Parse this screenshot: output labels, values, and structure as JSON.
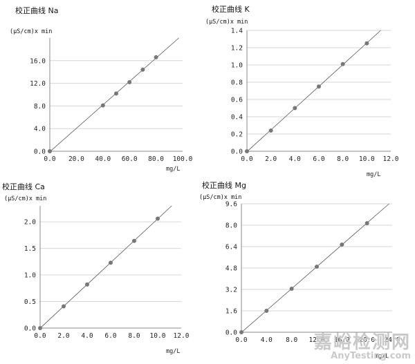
{
  "chart_data": [
    {
      "type": "scatter",
      "title": "校正曲线 Na",
      "ylabel": "(μS/cm)x min",
      "xlabel": "mg/L",
      "x": [
        0,
        40,
        50,
        60,
        70,
        80
      ],
      "y": [
        0,
        8.1,
        10.2,
        12.2,
        14.4,
        16.6
      ],
      "xlim": [
        0,
        100
      ],
      "ylim": [
        0,
        20
      ],
      "xticks": [
        "0.0",
        "20.0",
        "40.0",
        "60.0",
        "80.0",
        "100.0"
      ],
      "yticks": [
        "0.0",
        "4.0",
        "8.0",
        "12.0",
        "16.0"
      ],
      "fit_line": true
    },
    {
      "type": "scatter",
      "title": "校正曲线 K",
      "ylabel": "(μS/cm)x min",
      "xlabel": "mg/L",
      "x": [
        0,
        2,
        4,
        6,
        8,
        10
      ],
      "y": [
        0,
        0.24,
        0.5,
        0.75,
        1.01,
        1.25
      ],
      "xlim": [
        0,
        12
      ],
      "ylim": [
        0,
        1.4
      ],
      "xticks": [
        "0.0",
        "2.0",
        "4.0",
        "6.0",
        "8.0",
        "10.0",
        "12.0"
      ],
      "yticks": [
        "0.0",
        "0.2",
        "0.4",
        "0.6",
        "0.8",
        "1.0",
        "1.2",
        "1.4"
      ],
      "fit_line": true
    },
    {
      "type": "scatter",
      "title": "校正曲线 Ca",
      "ylabel": "(μS/cm)x min",
      "xlabel": "mg/L",
      "x": [
        0,
        2,
        4,
        6,
        8,
        10
      ],
      "y": [
        0,
        0.41,
        0.82,
        1.23,
        1.64,
        2.06
      ],
      "xlim": [
        0,
        12
      ],
      "ylim": [
        0,
        2.3
      ],
      "xticks": [
        "0.0",
        "2.0",
        "4.0",
        "6.0",
        "8.0",
        "10.0",
        "12.0"
      ],
      "yticks": [
        "0.0",
        "0.5",
        "1.0",
        "1.5",
        "2.0"
      ],
      "fit_line": true
    },
    {
      "type": "scatter",
      "title": "校正曲线 Mg",
      "ylabel": "(μS/cm)x min",
      "xlabel": "mg/L",
      "x": [
        0,
        4,
        8,
        12,
        16,
        20
      ],
      "y": [
        0,
        1.6,
        3.25,
        4.9,
        6.55,
        8.15
      ],
      "xlim": [
        0,
        24
      ],
      "ylim": [
        0,
        9.6
      ],
      "xticks": [
        "0.0",
        "4.0",
        "8.0",
        "12.0",
        "16.0",
        "20.0",
        "24.0"
      ],
      "yticks": [
        "0.0",
        "1.6",
        "3.2",
        "4.8",
        "6.4",
        "8.0",
        "9.6"
      ],
      "fit_line": true
    }
  ],
  "watermark": {
    "cn": "嘉峪检测网",
    "en": "AnyTesting.com"
  }
}
